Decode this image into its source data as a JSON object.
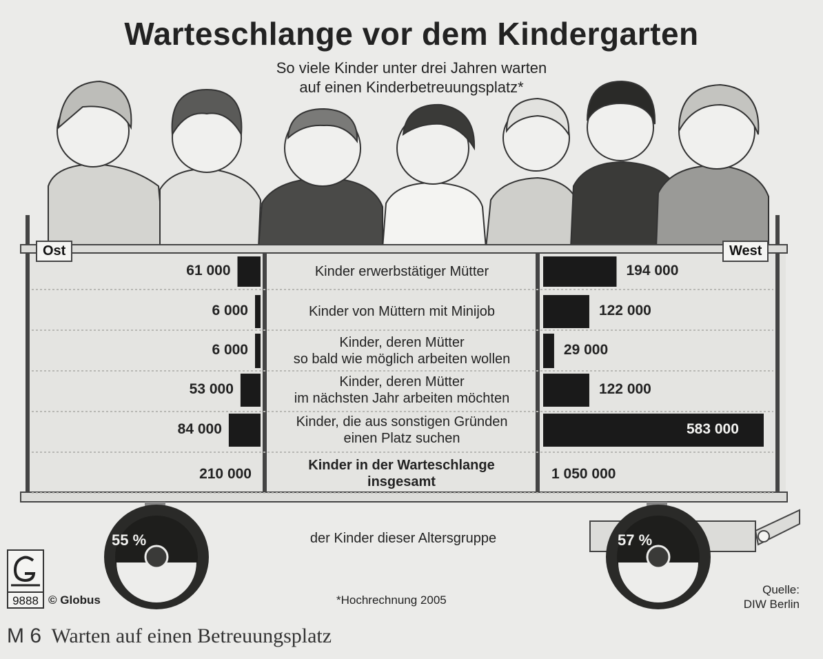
{
  "title": "Warteschlange vor dem Kindergarten",
  "subtitle_line1": "So viele Kinder unter drei Jahren warten",
  "subtitle_line2": "auf einen Kinderbetreuungsplatz*",
  "left_tag": "Ost",
  "right_tag": "West",
  "chart_data": {
    "type": "bar",
    "categories": [
      "Kinder erwerbstätiger Mütter",
      "Kinder von Müttern mit Minijob",
      "Kinder, deren Mütter so bald wie möglich arbeiten wollen",
      "Kinder, deren Mütter im nächsten Jahr arbeiten möchten",
      "Kinder, die aus sonstigen Gründen einen Platz suchen"
    ],
    "category_lines": [
      [
        "Kinder erwerbstätiger Mütter"
      ],
      [
        "Kinder von Müttern mit Minijob"
      ],
      [
        "Kinder, deren Mütter",
        "so bald wie möglich arbeiten wollen"
      ],
      [
        "Kinder, deren Mütter",
        "im nächsten Jahr arbeiten möchten"
      ],
      [
        "Kinder, die aus sonstigen Gründen",
        "einen Platz suchen"
      ]
    ],
    "series": [
      {
        "name": "Ost",
        "values": [
          61000,
          6000,
          6000,
          53000,
          84000
        ],
        "labels": [
          "61 000",
          "6 000",
          "6 000",
          "53 000",
          "84 000"
        ]
      },
      {
        "name": "West",
        "values": [
          194000,
          122000,
          29000,
          122000,
          583000
        ],
        "labels": [
          "194 000",
          "122 000",
          "29 000",
          "122 000",
          "583 000"
        ]
      }
    ],
    "total_label_lines": [
      "Kinder in der Warteschlange",
      "insgesamt"
    ],
    "totals": {
      "Ost": "210 000",
      "West": "1 050 000"
    },
    "share_caption": "der Kinder dieser Altersgruppe",
    "shares": {
      "Ost": 55,
      "West": 57
    },
    "share_labels": {
      "Ost": "55 %",
      "West": "57 %"
    }
  },
  "footnote": "*Hochrechnung 2005",
  "source_line1": "Quelle:",
  "source_line2": "DIW Berlin",
  "logo_number": "9888",
  "logo_text": "© Globus",
  "caption_number": "M 6",
  "caption_text": "Warten auf einen Betreuungsplatz",
  "colors": {
    "background": "#ebebe9",
    "bar": "#1a1a1a",
    "frame": "#444444"
  }
}
